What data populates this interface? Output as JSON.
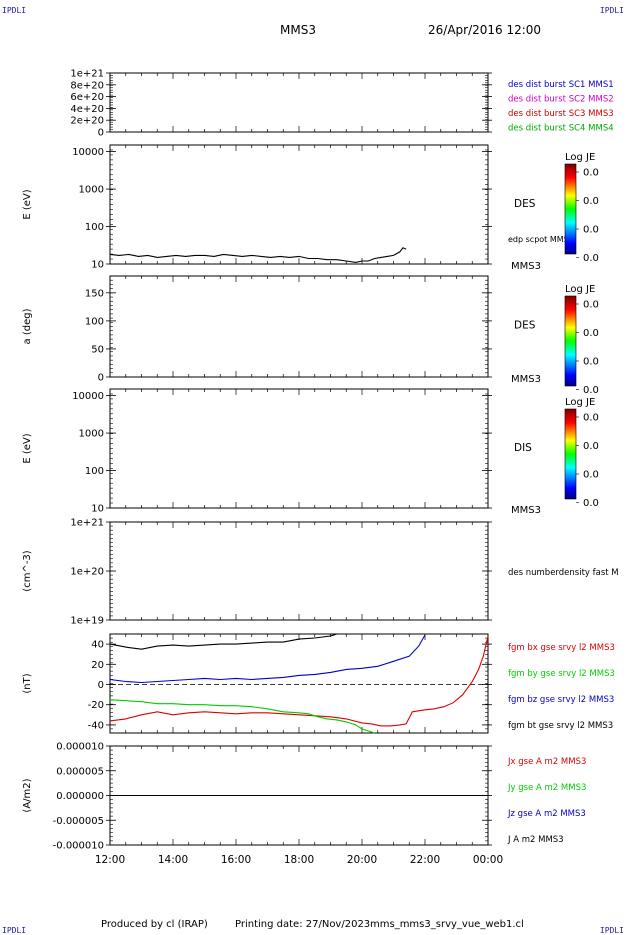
{
  "header": {
    "corner_label": "IPDLI",
    "spacecraft": "MMS3",
    "datetime": "26/Apr/2016 12:00"
  },
  "footer": {
    "producer": "Produced by cl (IRAP)",
    "printing": "Printing date: 27/Nov/2023",
    "filename": "mms_mms3_srvy_vue_web1.cl"
  },
  "colors": {
    "mms1": "#0000cc",
    "mms2": "#cc00cc",
    "mms3": "#cc0000",
    "mms4": "#00aa00",
    "bx": "#dd0000",
    "by": "#00cc00",
    "bz": "#0000cc",
    "bt": "#000000"
  },
  "colorbar": {
    "title": "Log JE",
    "ticks": [
      "0.0",
      "0.0",
      "0.0",
      "0.0"
    ]
  },
  "x_axis": {
    "ticks": [
      "12:00",
      "14:00",
      "16:00",
      "18:00",
      "20:00",
      "22:00",
      "00:00"
    ],
    "range_hours": [
      12,
      24
    ]
  },
  "chart_data": [
    {
      "type": "line",
      "panel": "burst-flags",
      "yticks": [
        "1e+21",
        "8e+20",
        "6e+20",
        "4e+20",
        "2e+20",
        "0"
      ],
      "ylim": [
        0,
        1e+21
      ],
      "dashed_zero": true,
      "legend": [
        {
          "name": "des dist burst SC1 MMS1",
          "color": "mms1"
        },
        {
          "name": "des dist burst SC2 MMS2",
          "color": "mms2"
        },
        {
          "name": "des dist burst SC3 MMS3",
          "color": "mms3"
        },
        {
          "name": "des dist burst SC4 MMS4",
          "color": "mms4"
        }
      ]
    },
    {
      "type": "line",
      "panel": "des-energy",
      "ylabel": "E (eV)",
      "scale": "log",
      "ylim": [
        10,
        15000
      ],
      "yticks": [
        "10000",
        "1000",
        "100",
        "10"
      ],
      "right_label": "DES",
      "series_label": "edp scpot MMS3",
      "sc_label": "MMS3",
      "series": [
        {
          "name": "edp scpot MMS3",
          "x": [
            12.0,
            12.3,
            12.6,
            12.9,
            13.2,
            13.5,
            13.8,
            14.1,
            14.4,
            14.7,
            15.0,
            15.3,
            15.6,
            15.9,
            16.2,
            16.5,
            16.8,
            17.1,
            17.4,
            17.7,
            18.0,
            18.3,
            18.6,
            18.9,
            19.2,
            19.5,
            19.8,
            20.0,
            20.2,
            20.4,
            20.6,
            20.8,
            21.0,
            21.2,
            21.3,
            21.4
          ],
          "values": [
            18,
            17,
            18,
            16,
            17,
            15,
            16,
            17,
            16,
            17,
            17,
            16,
            18,
            17,
            16,
            17,
            16,
            15,
            16,
            15,
            16,
            14,
            14,
            13,
            13,
            12,
            11,
            12,
            12,
            14,
            15,
            16,
            17,
            21,
            27,
            25
          ]
        }
      ]
    },
    {
      "type": "heatmap",
      "panel": "des-pitch",
      "ylabel": "a (deg)",
      "ylim": [
        0,
        180
      ],
      "yticks": [
        "150",
        "100",
        "50",
        "0"
      ],
      "right_label": "DES",
      "sc_label": "MMS3"
    },
    {
      "type": "heatmap",
      "panel": "dis-energy",
      "ylabel": "E (eV)",
      "scale": "log",
      "ylim": [
        10,
        15000
      ],
      "yticks": [
        "10000",
        "1000",
        "100",
        "10"
      ],
      "right_label": "DIS",
      "sc_label": "MMS3"
    },
    {
      "type": "line",
      "panel": "density",
      "ylabel": "(cm^-3)",
      "scale": "log",
      "ylim": [
        1e+19,
        1e+21
      ],
      "yticks": [
        "1e+21",
        "1e+20",
        "1e+19"
      ],
      "right_label": "des numberdensity fast M"
    },
    {
      "type": "line",
      "panel": "fgm",
      "ylabel": "(nT)",
      "ylim": [
        -48,
        50
      ],
      "yticks": [
        "40",
        "20",
        "0",
        "-20",
        "-40"
      ],
      "dashed_zero": true,
      "series": [
        {
          "name": "fgm bx gse srvy l2 MMS3",
          "color": "bx",
          "x": [
            12.0,
            12.5,
            13.0,
            13.5,
            14.0,
            14.5,
            15.0,
            15.5,
            16.0,
            16.5,
            17.0,
            17.5,
            18.0,
            18.5,
            19.0,
            19.5,
            20.0,
            20.3,
            20.6,
            20.9,
            21.2,
            21.4,
            21.6,
            21.8,
            22.0,
            22.3,
            22.6,
            22.9,
            23.2,
            23.5,
            23.7,
            23.85,
            24.0
          ],
          "values": [
            -36,
            -34,
            -30,
            -27,
            -30,
            -28,
            -27,
            -28,
            -29,
            -28,
            -28,
            -29,
            -30,
            -31,
            -32,
            -34,
            -38,
            -39,
            -41,
            -41,
            -40,
            -39,
            -27,
            -26,
            -25,
            -24,
            -22,
            -18,
            -10,
            3,
            15,
            28,
            48
          ]
        },
        {
          "name": "fgm by gse srvy l2 MMS3",
          "color": "by",
          "x": [
            12.0,
            12.5,
            13.0,
            13.5,
            14.0,
            14.5,
            15.0,
            15.5,
            16.0,
            16.5,
            17.0,
            17.5,
            18.0,
            18.3,
            18.6,
            18.9,
            19.2,
            19.5,
            19.8,
            20.0,
            20.2,
            20.4
          ],
          "values": [
            -15,
            -16,
            -17,
            -19,
            -19,
            -20,
            -20,
            -21,
            -21,
            -22,
            -24,
            -27,
            -28,
            -29,
            -32,
            -34,
            -35,
            -37,
            -40,
            -44,
            -46,
            -48
          ]
        },
        {
          "name": "fgm bz gse srvy l2 MMS3",
          "color": "bz",
          "x": [
            12.0,
            12.5,
            13.0,
            13.5,
            14.0,
            14.5,
            15.0,
            15.5,
            16.0,
            16.5,
            17.0,
            17.5,
            18.0,
            18.5,
            19.0,
            19.5,
            20.0,
            20.5,
            21.0,
            21.5,
            21.8,
            22.0
          ],
          "values": [
            5,
            3,
            2,
            3,
            4,
            5,
            6,
            5,
            6,
            5,
            6,
            7,
            9,
            10,
            12,
            15,
            16,
            18,
            23,
            28,
            38,
            49
          ]
        },
        {
          "name": "fgm bt gse srvy l2 MMS3",
          "color": "bt",
          "x": [
            12.0,
            12.5,
            13.0,
            13.5,
            14.0,
            14.5,
            15.0,
            15.5,
            16.0,
            16.5,
            17.0,
            17.5,
            18.0,
            18.5,
            19.0,
            19.2
          ],
          "values": [
            40,
            37,
            35,
            38,
            39,
            38,
            39,
            40,
            40,
            41,
            42,
            42,
            45,
            46,
            48,
            50
          ]
        }
      ]
    },
    {
      "type": "line",
      "panel": "current",
      "ylabel": "(A/m2)",
      "ylim": [
        -1e-05,
        1e-05
      ],
      "yticks": [
        "0.000010",
        "0.000005",
        "0.000000",
        "-0.000005",
        "-0.000010"
      ],
      "series": [
        {
          "name": "Jx gse A m2 MMS3",
          "color": "bx"
        },
        {
          "name": "Jy gse A m2 MMS3",
          "color": "by"
        },
        {
          "name": "Jz gse A m2 MMS3",
          "color": "bz"
        },
        {
          "name": "J A m2 MMS3",
          "color": "bt",
          "x": [
            12,
            24
          ],
          "values": [
            0,
            0
          ]
        }
      ]
    }
  ]
}
